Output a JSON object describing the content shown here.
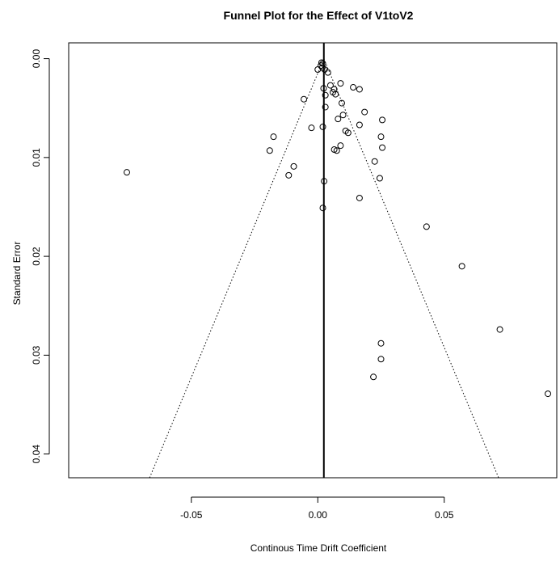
{
  "chart_data": {
    "type": "scatter",
    "title": "Funnel Plot for the Effect of V1toV2",
    "xlabel": "Continous Time Drift Coefficient",
    "ylabel": "Standard Error",
    "xlim": [
      -0.0985,
      0.0945
    ],
    "ylim": [
      0.0424,
      -0.0016
    ],
    "y_axis_reversed": true,
    "grid": false,
    "x_ticks": [
      {
        "value": -0.05,
        "label": "-0.05"
      },
      {
        "value": 0.0,
        "label": "0.00"
      },
      {
        "value": 0.05,
        "label": "0.05"
      }
    ],
    "y_ticks": [
      {
        "value": 0.0,
        "label": "0.00"
      },
      {
        "value": 0.01,
        "label": "0.01"
      },
      {
        "value": 0.02,
        "label": "0.02"
      },
      {
        "value": 0.03,
        "label": "0.03"
      },
      {
        "value": 0.04,
        "label": "0.04"
      }
    ],
    "reference_line": {
      "x": 0.0024
    },
    "funnel": {
      "apex": [
        0.0024,
        0.0
      ],
      "left_bottom": [
        -0.0665,
        0.0424
      ],
      "right_bottom": [
        0.0715,
        0.0424
      ]
    },
    "points": [
      {
        "x": 0.0015,
        "y": 0.0004
      },
      {
        "x": 0.002,
        "y": 0.0005
      },
      {
        "x": 0.0012,
        "y": 0.0007
      },
      {
        "x": 0.0018,
        "y": 0.0009
      },
      {
        "x": 0.0,
        "y": 0.0011
      },
      {
        "x": 0.0027,
        "y": 0.0011
      },
      {
        "x": 0.004,
        "y": 0.0014
      },
      {
        "x": 0.009,
        "y": 0.0025
      },
      {
        "x": 0.005,
        "y": 0.0027
      },
      {
        "x": 0.014,
        "y": 0.0029
      },
      {
        "x": 0.0023,
        "y": 0.003
      },
      {
        "x": 0.0065,
        "y": 0.0031
      },
      {
        "x": 0.0165,
        "y": 0.0031
      },
      {
        "x": 0.006,
        "y": 0.0034
      },
      {
        "x": 0.007,
        "y": 0.0036
      },
      {
        "x": 0.003,
        "y": 0.0037
      },
      {
        "x": -0.0055,
        "y": 0.0041
      },
      {
        "x": 0.0095,
        "y": 0.0045
      },
      {
        "x": 0.003,
        "y": 0.0049
      },
      {
        "x": 0.0185,
        "y": 0.0054
      },
      {
        "x": 0.01,
        "y": 0.0057
      },
      {
        "x": 0.008,
        "y": 0.0061
      },
      {
        "x": 0.0255,
        "y": 0.0062
      },
      {
        "x": 0.0165,
        "y": 0.0067
      },
      {
        "x": -0.0025,
        "y": 0.007
      },
      {
        "x": 0.002,
        "y": 0.0069
      },
      {
        "x": 0.011,
        "y": 0.0073
      },
      {
        "x": 0.012,
        "y": 0.0075
      },
      {
        "x": -0.0175,
        "y": 0.0079
      },
      {
        "x": 0.025,
        "y": 0.0079
      },
      {
        "x": 0.009,
        "y": 0.0088
      },
      {
        "x": 0.0255,
        "y": 0.009
      },
      {
        "x": 0.0065,
        "y": 0.0092
      },
      {
        "x": 0.0075,
        "y": 0.0093
      },
      {
        "x": -0.019,
        "y": 0.0093
      },
      {
        "x": 0.0225,
        "y": 0.0104
      },
      {
        "x": -0.0095,
        "y": 0.0109
      },
      {
        "x": -0.0755,
        "y": 0.0115
      },
      {
        "x": -0.0115,
        "y": 0.0118
      },
      {
        "x": 0.0245,
        "y": 0.0121
      },
      {
        "x": 0.0025,
        "y": 0.0124
      },
      {
        "x": 0.0165,
        "y": 0.0141
      },
      {
        "x": 0.002,
        "y": 0.0151
      },
      {
        "x": 0.043,
        "y": 0.017
      },
      {
        "x": 0.057,
        "y": 0.021
      },
      {
        "x": 0.072,
        "y": 0.0274
      },
      {
        "x": 0.025,
        "y": 0.0288
      },
      {
        "x": 0.025,
        "y": 0.0304
      },
      {
        "x": 0.022,
        "y": 0.0322
      },
      {
        "x": 0.091,
        "y": 0.0339
      }
    ]
  }
}
